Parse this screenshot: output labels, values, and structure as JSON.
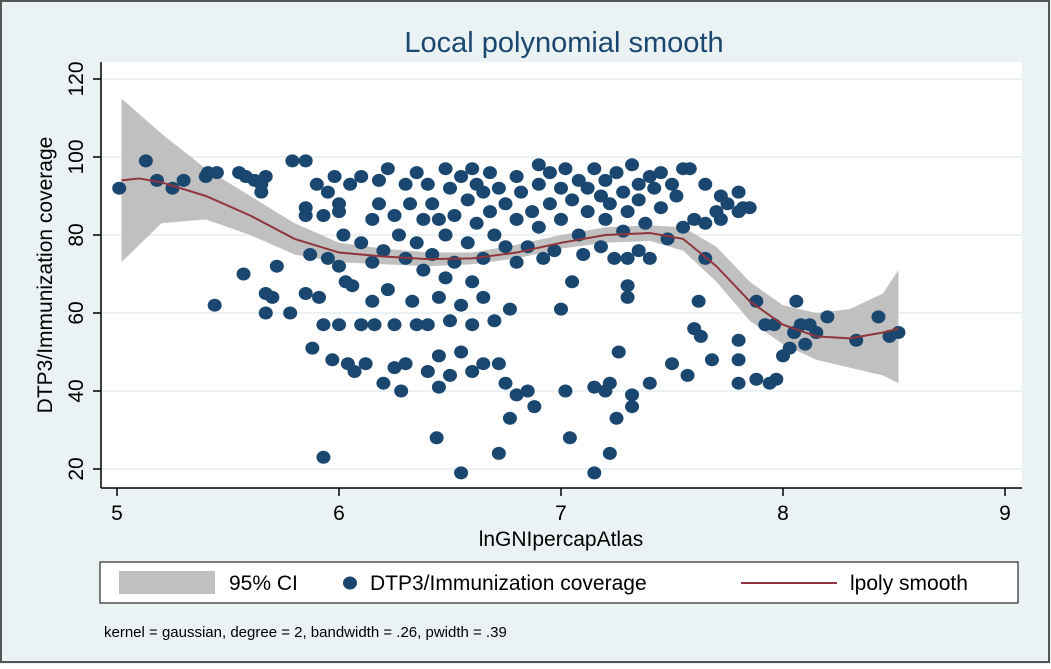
{
  "chart_data": {
    "type": "scatter",
    "title": "Local polynomial smooth",
    "xlabel": "lnGNIpercapAtlas",
    "ylabel": "DTP3/Immunization coverage",
    "xlim": [
      5,
      9
    ],
    "ylim": [
      18,
      124
    ],
    "xticks": [
      5,
      6,
      7,
      8,
      9
    ],
    "yticks": [
      20,
      40,
      60,
      80,
      100,
      120
    ],
    "grid": true,
    "legend_position": "bottom",
    "legend": [
      "95% CI",
      "DTP3/Immunization coverage",
      "lpoly smooth"
    ],
    "note": "kernel = gaussian, degree = 2, bandwidth = .26, pwidth = .39",
    "colors": {
      "background": "#eaf2f3",
      "points": "#1a476f",
      "smooth": "#90353b",
      "ci": "#c0c0c0",
      "title": "#1a476f"
    },
    "series": [
      {
        "name": "DTP3/Immunization coverage",
        "type": "scatter",
        "points": [
          [
            5.01,
            92
          ],
          [
            5.13,
            99
          ],
          [
            5.18,
            94
          ],
          [
            5.25,
            92
          ],
          [
            5.3,
            94
          ],
          [
            5.4,
            95
          ],
          [
            5.41,
            96
          ],
          [
            5.45,
            96
          ],
          [
            5.44,
            62
          ],
          [
            5.55,
            96
          ],
          [
            5.57,
            70
          ],
          [
            5.58,
            95
          ],
          [
            5.62,
            94
          ],
          [
            5.65,
            91
          ],
          [
            5.65,
            93
          ],
          [
            5.67,
            95
          ],
          [
            5.67,
            65
          ],
          [
            5.7,
            64
          ],
          [
            5.67,
            60
          ],
          [
            5.72,
            72
          ],
          [
            5.78,
            60
          ],
          [
            5.79,
            99
          ],
          [
            5.85,
            99
          ],
          [
            5.85,
            87
          ],
          [
            5.85,
            85
          ],
          [
            5.85,
            65
          ],
          [
            5.87,
            75
          ],
          [
            5.88,
            51
          ],
          [
            5.9,
            93
          ],
          [
            5.91,
            64
          ],
          [
            5.93,
            85
          ],
          [
            5.93,
            57
          ],
          [
            5.93,
            23
          ],
          [
            5.95,
            91
          ],
          [
            5.95,
            74
          ],
          [
            5.97,
            48
          ],
          [
            5.98,
            95
          ],
          [
            6.0,
            88
          ],
          [
            6.0,
            86
          ],
          [
            6.0,
            72
          ],
          [
            6.0,
            57
          ],
          [
            6.02,
            80
          ],
          [
            6.03,
            68
          ],
          [
            6.04,
            47
          ],
          [
            6.05,
            93
          ],
          [
            6.06,
            67
          ],
          [
            6.07,
            45
          ],
          [
            6.1,
            95
          ],
          [
            6.1,
            78
          ],
          [
            6.1,
            57
          ],
          [
            6.12,
            47
          ],
          [
            6.15,
            84
          ],
          [
            6.15,
            73
          ],
          [
            6.15,
            63
          ],
          [
            6.16,
            57
          ],
          [
            6.18,
            94
          ],
          [
            6.18,
            88
          ],
          [
            6.2,
            76
          ],
          [
            6.2,
            42
          ],
          [
            6.22,
            97
          ],
          [
            6.22,
            66
          ],
          [
            6.25,
            85
          ],
          [
            6.25,
            57
          ],
          [
            6.25,
            46
          ],
          [
            6.27,
            80
          ],
          [
            6.28,
            40
          ],
          [
            6.3,
            93
          ],
          [
            6.3,
            74
          ],
          [
            6.3,
            47
          ],
          [
            6.32,
            88
          ],
          [
            6.33,
            63
          ],
          [
            6.35,
            96
          ],
          [
            6.35,
            78
          ],
          [
            6.35,
            57
          ],
          [
            6.38,
            84
          ],
          [
            6.38,
            71
          ],
          [
            6.4,
            93
          ],
          [
            6.4,
            57
          ],
          [
            6.4,
            45
          ],
          [
            6.42,
            88
          ],
          [
            6.42,
            75
          ],
          [
            6.44,
            28
          ],
          [
            6.45,
            84
          ],
          [
            6.45,
            64
          ],
          [
            6.45,
            49
          ],
          [
            6.45,
            41
          ],
          [
            6.48,
            97
          ],
          [
            6.48,
            80
          ],
          [
            6.48,
            69
          ],
          [
            6.5,
            92
          ],
          [
            6.5,
            58
          ],
          [
            6.5,
            44
          ],
          [
            6.52,
            85
          ],
          [
            6.52,
            73
          ],
          [
            6.55,
            19
          ],
          [
            6.55,
            95
          ],
          [
            6.55,
            62
          ],
          [
            6.55,
            50
          ],
          [
            6.58,
            89
          ],
          [
            6.58,
            78
          ],
          [
            6.6,
            97
          ],
          [
            6.6,
            68
          ],
          [
            6.6,
            57
          ],
          [
            6.6,
            45
          ],
          [
            6.62,
            93
          ],
          [
            6.62,
            83
          ],
          [
            6.65,
            91
          ],
          [
            6.65,
            74
          ],
          [
            6.65,
            64
          ],
          [
            6.65,
            47
          ],
          [
            6.68,
            96
          ],
          [
            6.68,
            86
          ],
          [
            6.7,
            80
          ],
          [
            6.7,
            58
          ],
          [
            6.72,
            24
          ],
          [
            6.72,
            92
          ],
          [
            6.72,
            47
          ],
          [
            6.75,
            88
          ],
          [
            6.75,
            77
          ],
          [
            6.75,
            42
          ],
          [
            6.77,
            61
          ],
          [
            6.77,
            33
          ],
          [
            6.8,
            95
          ],
          [
            6.8,
            84
          ],
          [
            6.8,
            73
          ],
          [
            6.8,
            39
          ],
          [
            6.82,
            91
          ],
          [
            6.85,
            77
          ],
          [
            6.85,
            40
          ],
          [
            6.87,
            86
          ],
          [
            6.88,
            36
          ],
          [
            6.9,
            98
          ],
          [
            6.9,
            93
          ],
          [
            6.9,
            82
          ],
          [
            6.92,
            74
          ],
          [
            6.95,
            96
          ],
          [
            6.95,
            88
          ],
          [
            6.97,
            76
          ],
          [
            7.0,
            92
          ],
          [
            7.0,
            84
          ],
          [
            7.0,
            61
          ],
          [
            7.02,
            97
          ],
          [
            7.02,
            40
          ],
          [
            7.04,
            28
          ],
          [
            7.05,
            89
          ],
          [
            7.05,
            68
          ],
          [
            7.08,
            94
          ],
          [
            7.08,
            80
          ],
          [
            7.1,
            75
          ],
          [
            7.12,
            92
          ],
          [
            7.12,
            86
          ],
          [
            7.15,
            97
          ],
          [
            7.15,
            41
          ],
          [
            7.15,
            19
          ],
          [
            7.18,
            90
          ],
          [
            7.18,
            77
          ],
          [
            7.2,
            94
          ],
          [
            7.2,
            84
          ],
          [
            7.2,
            40
          ],
          [
            7.22,
            24
          ],
          [
            7.22,
            88
          ],
          [
            7.22,
            42
          ],
          [
            7.24,
            74
          ],
          [
            7.25,
            96
          ],
          [
            7.25,
            33
          ],
          [
            7.26,
            50
          ],
          [
            7.28,
            91
          ],
          [
            7.28,
            81
          ],
          [
            7.3,
            86
          ],
          [
            7.3,
            74
          ],
          [
            7.3,
            67
          ],
          [
            7.3,
            64
          ],
          [
            7.32,
            39
          ],
          [
            7.32,
            36
          ],
          [
            7.32,
            98
          ],
          [
            7.35,
            93
          ],
          [
            7.35,
            76
          ],
          [
            7.35,
            89
          ],
          [
            7.38,
            83
          ],
          [
            7.4,
            95
          ],
          [
            7.4,
            74
          ],
          [
            7.4,
            42
          ],
          [
            7.42,
            92
          ],
          [
            7.45,
            96
          ],
          [
            7.45,
            87
          ],
          [
            7.48,
            79
          ],
          [
            7.5,
            93
          ],
          [
            7.5,
            47
          ],
          [
            7.52,
            90
          ],
          [
            7.55,
            97
          ],
          [
            7.55,
            82
          ],
          [
            7.57,
            44
          ],
          [
            7.58,
            97
          ],
          [
            7.6,
            84
          ],
          [
            7.6,
            56
          ],
          [
            7.62,
            63
          ],
          [
            7.63,
            54
          ],
          [
            7.65,
            93
          ],
          [
            7.65,
            74
          ],
          [
            7.65,
            83
          ],
          [
            7.68,
            48
          ],
          [
            7.7,
            86
          ],
          [
            7.72,
            90
          ],
          [
            7.72,
            84
          ],
          [
            7.75,
            88
          ],
          [
            7.8,
            86
          ],
          [
            7.8,
            91
          ],
          [
            7.8,
            53
          ],
          [
            7.8,
            48
          ],
          [
            7.8,
            42
          ],
          [
            7.82,
            87
          ],
          [
            7.85,
            87
          ],
          [
            7.88,
            63
          ],
          [
            7.88,
            43
          ],
          [
            7.92,
            57
          ],
          [
            7.94,
            42
          ],
          [
            7.96,
            57
          ],
          [
            7.97,
            43
          ],
          [
            8.0,
            49
          ],
          [
            8.03,
            51
          ],
          [
            8.05,
            55
          ],
          [
            8.06,
            63
          ],
          [
            8.08,
            57
          ],
          [
            8.1,
            52
          ],
          [
            8.12,
            57
          ],
          [
            8.15,
            55
          ],
          [
            8.2,
            59
          ],
          [
            8.33,
            53
          ],
          [
            8.43,
            59
          ],
          [
            8.48,
            54
          ],
          [
            8.52,
            55
          ]
        ]
      },
      {
        "name": "lpoly smooth",
        "type": "line",
        "x": [
          5.02,
          5.1,
          5.2,
          5.4,
          5.6,
          5.8,
          6.0,
          6.2,
          6.4,
          6.6,
          6.8,
          7.0,
          7.2,
          7.4,
          7.55,
          7.7,
          7.85,
          8.0,
          8.15,
          8.3,
          8.45,
          8.52
        ],
        "y": [
          94,
          94.5,
          93.5,
          90,
          85,
          79,
          75.5,
          74.5,
          73.8,
          74,
          75.5,
          78,
          80,
          80.5,
          79,
          72,
          63,
          57,
          54,
          53.5,
          55,
          56
        ]
      },
      {
        "name": "95% CI",
        "type": "area",
        "x": [
          5.02,
          5.2,
          5.4,
          5.6,
          5.8,
          6.0,
          6.2,
          6.4,
          6.6,
          6.8,
          7.0,
          7.2,
          7.4,
          7.55,
          7.7,
          7.85,
          8.0,
          8.15,
          8.3,
          8.45,
          8.52
        ],
        "lower": [
          73,
          83,
          84,
          80,
          75,
          73,
          72.5,
          72,
          72.5,
          74,
          76.5,
          78,
          78.5,
          76,
          68,
          58,
          52,
          48,
          46,
          44,
          42
        ],
        "upper": [
          115,
          106,
          97,
          90,
          83,
          78,
          76.5,
          75.5,
          75.5,
          77.5,
          80,
          82,
          82.5,
          82,
          77,
          68,
          62,
          60,
          61,
          65,
          71
        ]
      }
    ]
  }
}
